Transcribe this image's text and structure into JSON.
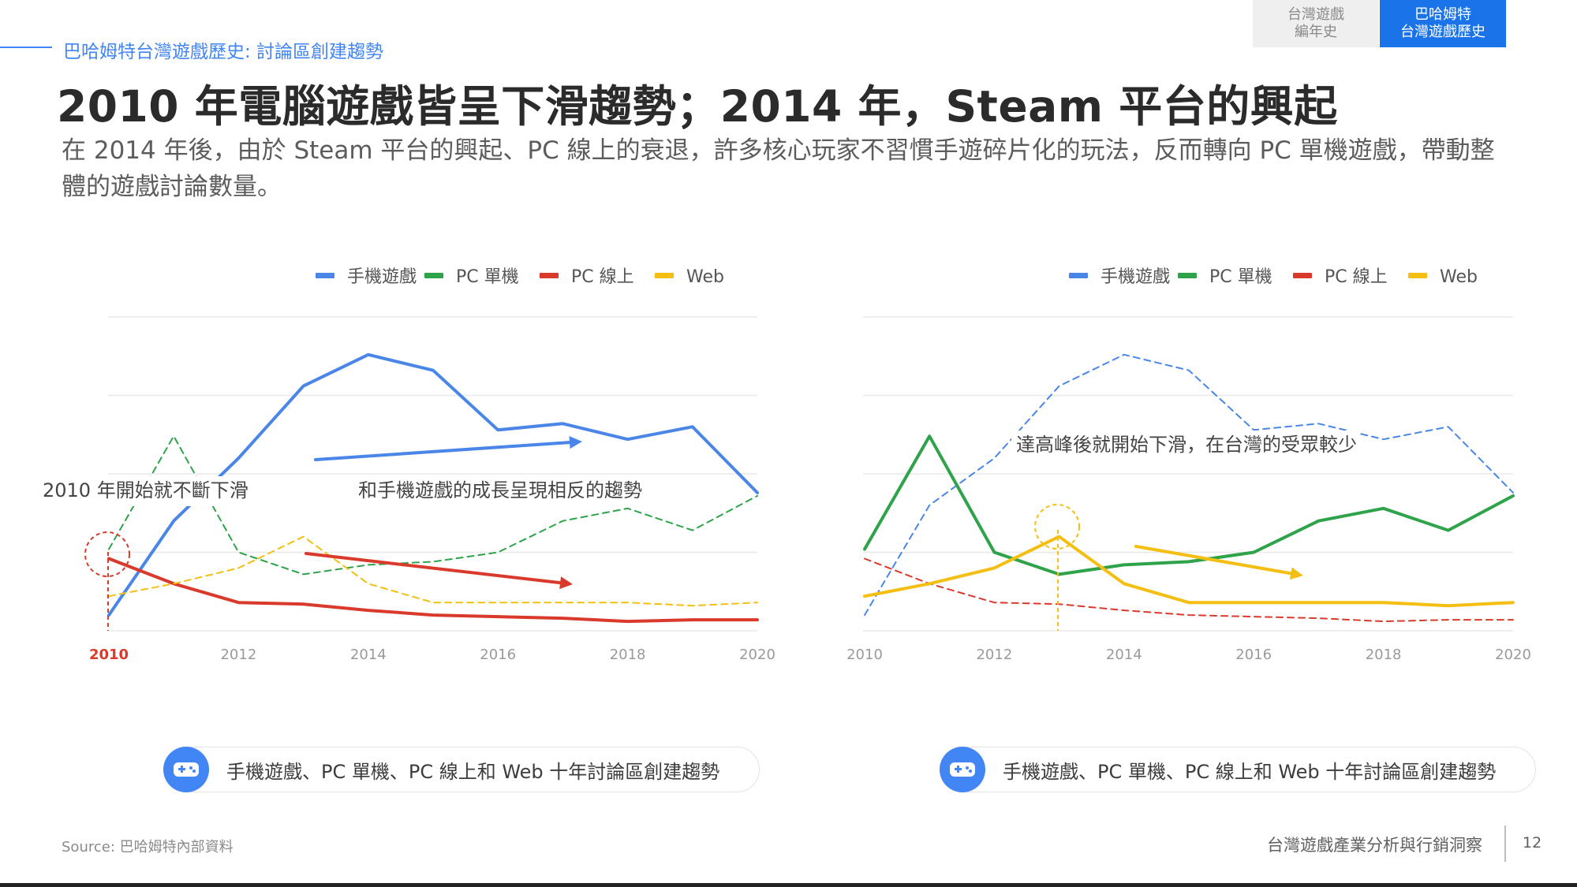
{
  "header": {
    "breadcrumb": "巴哈姆特台灣遊戲歷史: 討論區創建趨勢",
    "tabs": [
      {
        "label": "台灣遊戲\n編年史",
        "active": false
      },
      {
        "label": "巴哈姆特\n台灣遊戲歷史",
        "active": true
      }
    ]
  },
  "title": "2010 年電腦遊戲皆呈下滑趨勢；2014 年，Steam 平台的興起",
  "subtitle": "在 2014 年後，由於 Steam 平台的興起、PC 線上的衰退，許多核心玩家不習慣手遊碎片化的玩法，反而轉向 PC 單機遊戲，帶動整體的遊戲討論數量。",
  "colors": {
    "mobile": "#4a86e8",
    "pc_single": "#2ea34a",
    "pc_online": "#d93a2b",
    "web": "#f4bf12",
    "grid": "#e8e8e8",
    "highlight_tick": "#d93a2b"
  },
  "chart_data": [
    {
      "type": "line",
      "x": [
        2010,
        2011,
        2012,
        2013,
        2014,
        2015,
        2016,
        2017,
        2018,
        2019,
        2020
      ],
      "series": [
        {
          "name": "手機遊戲",
          "color": "#4a86e8",
          "style": "solid",
          "values": [
            0.5,
            3.5,
            5.5,
            7.8,
            8.8,
            8.3,
            6.4,
            6.6,
            6.1,
            6.5,
            4.4
          ]
        },
        {
          "name": "PC 單機",
          "color": "#2ea34a",
          "style": "dashed",
          "values": [
            2.6,
            6.2,
            2.5,
            1.8,
            2.1,
            2.2,
            2.5,
            3.5,
            3.9,
            3.2,
            4.3
          ]
        },
        {
          "name": "PC 線上",
          "color": "#d93a2b",
          "style": "solid",
          "values": [
            2.3,
            1.5,
            0.9,
            0.85,
            0.65,
            0.5,
            0.45,
            0.4,
            0.3,
            0.35,
            0.35
          ]
        },
        {
          "name": "Web",
          "color": "#f4bf12",
          "style": "dashed",
          "values": [
            1.1,
            1.5,
            2.0,
            3.0,
            1.5,
            0.9,
            0.9,
            0.9,
            0.9,
            0.8,
            0.9
          ]
        }
      ],
      "x_ticks": [
        "2010",
        "2012",
        "2014",
        "2016",
        "2018",
        "2020"
      ],
      "highlight_x": "2010",
      "ylim": [
        0,
        10
      ],
      "grid": true,
      "legend_position": "top",
      "annotations": [
        {
          "text": "2010 年開始就不斷下滑"
        },
        {
          "text": "和手機遊戲的成長呈現相反的趨勢"
        }
      ],
      "caption": "手機遊戲、PC 單機、PC 線上和 Web 十年討論區創建趨勢"
    },
    {
      "type": "line",
      "x": [
        2010,
        2011,
        2012,
        2013,
        2014,
        2015,
        2016,
        2017,
        2018,
        2019,
        2020
      ],
      "series": [
        {
          "name": "手機遊戲",
          "color": "#4a86e8",
          "style": "dashed",
          "values": [
            0.5,
            4.0,
            5.5,
            7.8,
            8.8,
            8.3,
            6.4,
            6.6,
            6.1,
            6.5,
            4.4
          ]
        },
        {
          "name": "PC 單機",
          "color": "#2ea34a",
          "style": "solid",
          "values": [
            2.6,
            6.2,
            2.5,
            1.8,
            2.1,
            2.2,
            2.5,
            3.5,
            3.9,
            3.2,
            4.3
          ]
        },
        {
          "name": "PC 線上",
          "color": "#d93a2b",
          "style": "dashed",
          "values": [
            2.3,
            1.5,
            0.9,
            0.85,
            0.65,
            0.5,
            0.45,
            0.4,
            0.3,
            0.35,
            0.35
          ]
        },
        {
          "name": "Web",
          "color": "#f4bf12",
          "style": "solid",
          "values": [
            1.1,
            1.5,
            2.0,
            3.0,
            1.5,
            0.9,
            0.9,
            0.9,
            0.9,
            0.8,
            0.9
          ]
        }
      ],
      "x_ticks": [
        "2010",
        "2012",
        "2014",
        "2016",
        "2018",
        "2020"
      ],
      "ylim": [
        0,
        10
      ],
      "grid": true,
      "legend_position": "top",
      "annotations": [
        {
          "text": "達高峰後就開始下滑，在台灣的受眾較少"
        }
      ],
      "caption": "手機遊戲、PC 單機、PC 線上和 Web 十年討論區創建趨勢"
    }
  ],
  "footer": {
    "source": "Source: 巴哈姆特內部資料",
    "deck_title": "台灣遊戲產業分析與行銷洞察",
    "page": "12"
  }
}
